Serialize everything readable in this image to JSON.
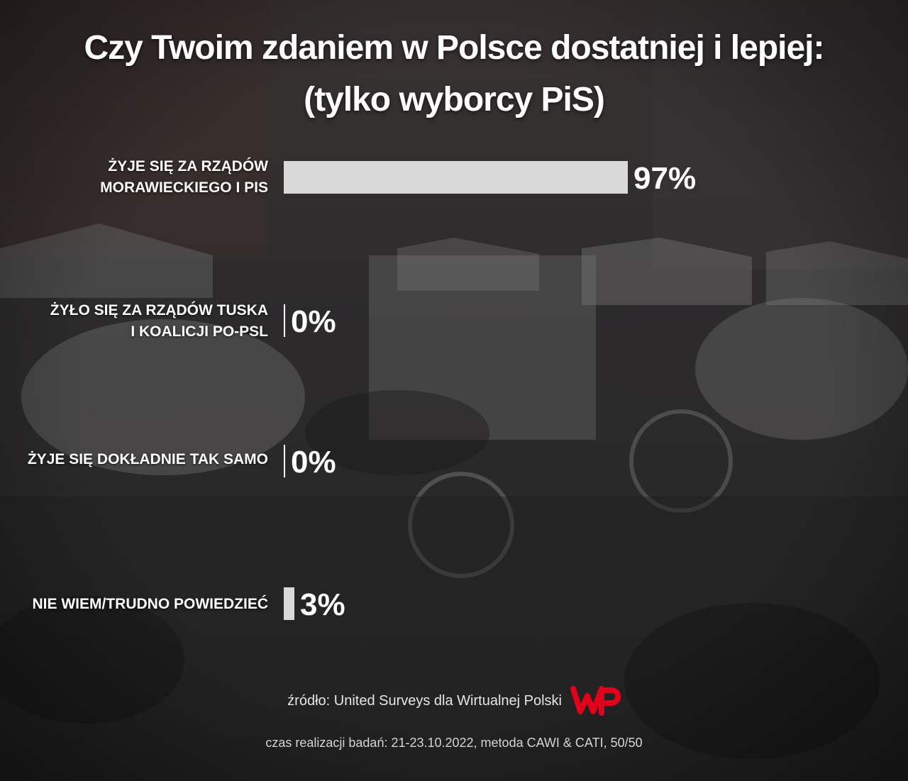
{
  "chart_data": {
    "type": "bar",
    "orientation": "horizontal",
    "title": "Czy Twoim zdaniem w Polsce dostatniej i lepiej:",
    "subtitle": "(tylko wyborcy PiS)",
    "categories": [
      [
        "ŻYJE SIĘ ZA RZĄDÓW",
        "MORAWIECKIEGO I PIS"
      ],
      [
        "ŻYŁO SIĘ ZA RZĄDÓW TUSKA",
        "I KOALICJI PO-PSL"
      ],
      [
        "ŻYJE SIĘ DOKŁADNIE TAK SAMO"
      ],
      [
        "NIE WIEM/TRUDNO POWIEDZIEĆ"
      ]
    ],
    "values": [
      97,
      0,
      0,
      3
    ],
    "value_labels": [
      "97%",
      "0%",
      "0%",
      "3%"
    ],
    "xlim": [
      0,
      100
    ],
    "grid": false,
    "bar_color": "#d9d9d9",
    "axis_line_color": "#ffffff"
  },
  "footer": {
    "source": "źródło: United Surveys dla Wirtualnej Polski",
    "method": "czas realizacji badań: 21-23.10.2022, metoda CAWI & CATI, 50/50",
    "logo_text": "WP",
    "logo_color": "#e2001a"
  }
}
